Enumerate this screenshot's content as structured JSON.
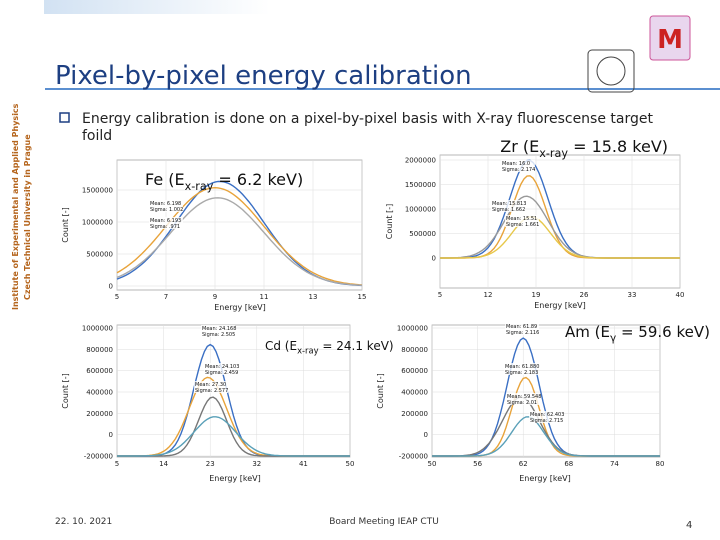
{
  "sidebar": [
    "Institute of Experimental and Applied Physics",
    "Czech Technical University in Prague"
  ],
  "header": {
    "title": "Pixel-by-pixel energy calibration"
  },
  "bullet": {
    "lines": [
      "Energy calibration is done on a pixel-by-pixel basis with X-ray fluorescense target",
      "foild"
    ]
  },
  "plots": [
    {
      "label": {
        "prefix": "Fe (E",
        "sub": "x-ray",
        "suffix": " = 6.2 keV)"
      },
      "xticks": [
        5,
        7,
        9,
        11,
        13,
        15
      ],
      "yticks": [
        0,
        500000,
        1000000,
        1500000
      ],
      "xlabel": "Energy [keV]",
      "ylabel": "Count [-]",
      "annotations": [
        "Mean: 6.198",
        "Sigma: 1.002",
        "Mean: 6.193",
        "Sigma: .971"
      ]
    },
    {
      "label": {
        "prefix": "Zr (E",
        "sub": "x-ray",
        "suffix": " = 15.8 keV)"
      },
      "xticks": [
        5,
        12,
        19,
        26,
        33,
        40
      ],
      "yticks": [
        0,
        500000,
        1000000,
        1500000,
        2000000
      ],
      "xlabel": "Energy [keV]",
      "ylabel": "Count [-]",
      "annotations": [
        "Mean: 16.0",
        "Sigma: 2.174",
        "Mean: 15.813",
        "Sigma: 1.662",
        "Mean: 15.51",
        "Sigma: 1.661"
      ]
    },
    {
      "label": {
        "prefix": "Cd (E",
        "sub": "x-ray",
        "suffix": " = 24.1 keV)"
      },
      "xticks": [
        5,
        14,
        23,
        32,
        41,
        50
      ],
      "yticks": [
        -200000,
        0,
        200000,
        400000,
        600000,
        800000,
        1000000
      ],
      "xlabel": "Energy [keV]",
      "ylabel": "Count [-]",
      "annotations": [
        "Mean: 24.168",
        "Sigma: 2.505",
        "Mean: 24.103",
        "Sigma: 2.459",
        "Mean: 27.30",
        "Sigma: 2.577"
      ]
    },
    {
      "label": {
        "prefix": "Am (E",
        "sub": "γ",
        "suffix": " = 59.6 keV)"
      },
      "xticks": [
        50,
        56,
        62,
        68,
        74,
        80
      ],
      "yticks": [
        -200000,
        0,
        200000,
        400000,
        600000,
        800000,
        1000000
      ],
      "xlabel": "Energy [keV]",
      "ylabel": "Count [-]",
      "annotations": [
        "Mean: 61.89",
        "Sigma: 2.116",
        "Mean: 61.880",
        "Sigma: 2.183",
        "Mean: 59.548",
        "Sigma: 2.01",
        "Mean: 62.403",
        "Sigma: 2.715"
      ]
    }
  ],
  "footer": {
    "date": "22. 10. 2021",
    "center": "Board Meeting IEAP CTU",
    "page": "4"
  }
}
